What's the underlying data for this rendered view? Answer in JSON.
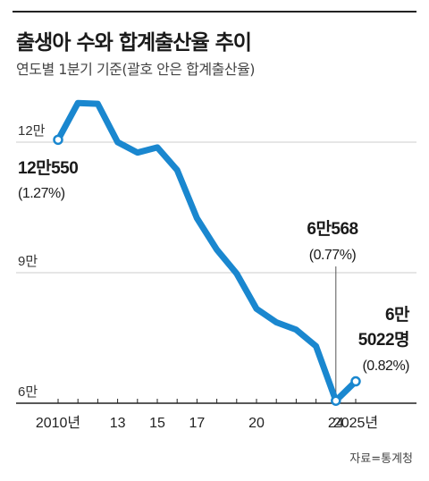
{
  "header": {
    "title": "출생아 수와 합계출산율 추이",
    "subtitle": "연도별 1분기 기준(괄호 안은 합계출산율)"
  },
  "source": "자료=통계청",
  "colors": {
    "line": "#1a87cf",
    "grid": "#cccccc",
    "axis": "#222222",
    "text": "#222222"
  },
  "chart_data": {
    "type": "line",
    "title": "출생아 수와 합계출산율 추이",
    "subtitle": "연도별 1분기 기준(괄호 안은 합계출산율)",
    "x": [
      2010,
      2011,
      2012,
      2013,
      2014,
      2015,
      2016,
      2017,
      2018,
      2019,
      2020,
      2021,
      2022,
      2023,
      2024,
      2025
    ],
    "series": [
      {
        "values": [
          120550,
          129000,
          128800,
          120000,
          117600,
          118800,
          113600,
          102500,
          95300,
          89800,
          81700,
          78600,
          76900,
          73100,
          60568,
          65022
        ]
      }
    ],
    "ylim": [
      60000,
      130000
    ],
    "y_ticks": [
      {
        "value": 120000,
        "label": "12만"
      },
      {
        "value": 90000,
        "label": "9만"
      },
      {
        "value": 60000,
        "label": "6만"
      }
    ],
    "x_ticks": [
      {
        "value": 2010,
        "label": "2010년"
      },
      {
        "value": 2013,
        "label": "13"
      },
      {
        "value": 2015,
        "label": "15"
      },
      {
        "value": 2017,
        "label": "17"
      },
      {
        "value": 2020,
        "label": "20"
      },
      {
        "value": 2024,
        "label": "24"
      },
      {
        "value": 2025,
        "label": "2025년"
      }
    ],
    "grid": true,
    "annotations": {
      "start": {
        "year": 2010,
        "value_label": "12만550",
        "rate_label": "(1.27%)"
      },
      "y2024": {
        "year": 2024,
        "value_label": "6만568",
        "rate_label": "(0.77%)"
      },
      "y2025": {
        "year": 2025,
        "value_line1": "6만",
        "value_line2": "5022명",
        "rate_label": "(0.82%)"
      }
    }
  }
}
